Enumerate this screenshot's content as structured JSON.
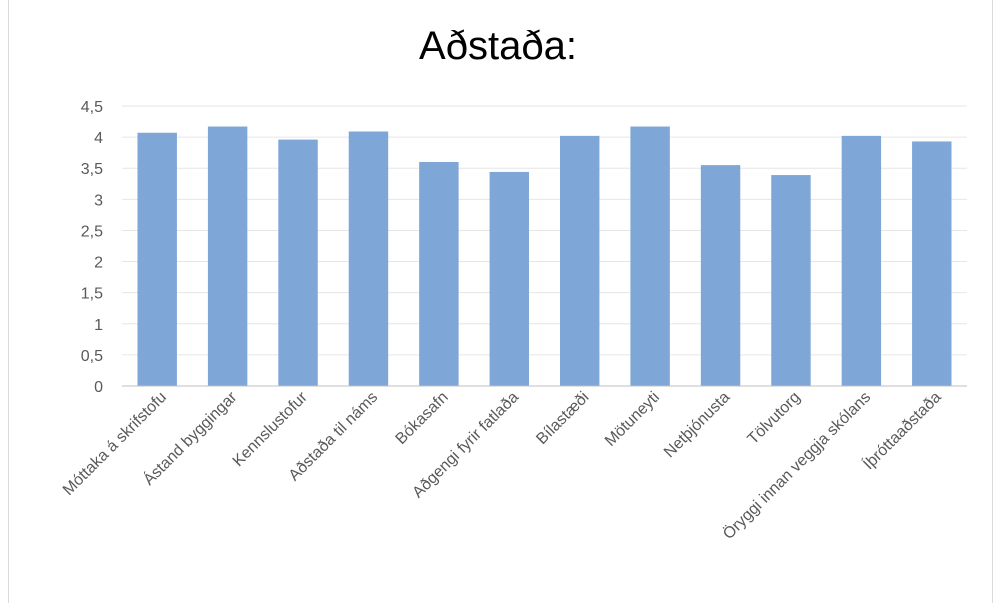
{
  "chart_data": {
    "type": "bar",
    "title": "Aðstaða:",
    "xlabel": "",
    "ylabel": "",
    "ylim": [
      0,
      4.5
    ],
    "yticks": [
      "0",
      "0,5",
      "1",
      "1,5",
      "2",
      "2,5",
      "3",
      "3,5",
      "4",
      "4,5"
    ],
    "grid": true,
    "legend": "none",
    "bar_color": "#7ea6d6",
    "categories": [
      "Móttaka á skrifstofu",
      "Ástand byggingar",
      "Kennslustofur",
      "Aðstaða til náms",
      "Bókasafn",
      "Aðgengi fyrir fatlaða",
      "Bílastæði",
      "Mötuneyti",
      "Netþjónusta",
      "Tölvutorg",
      "Öryggi innan veggja skólans",
      "Íþróttaaðstaða"
    ],
    "values": [
      4.07,
      4.17,
      3.96,
      4.09,
      3.6,
      3.44,
      4.02,
      4.17,
      3.55,
      3.39,
      4.02,
      3.93
    ]
  }
}
